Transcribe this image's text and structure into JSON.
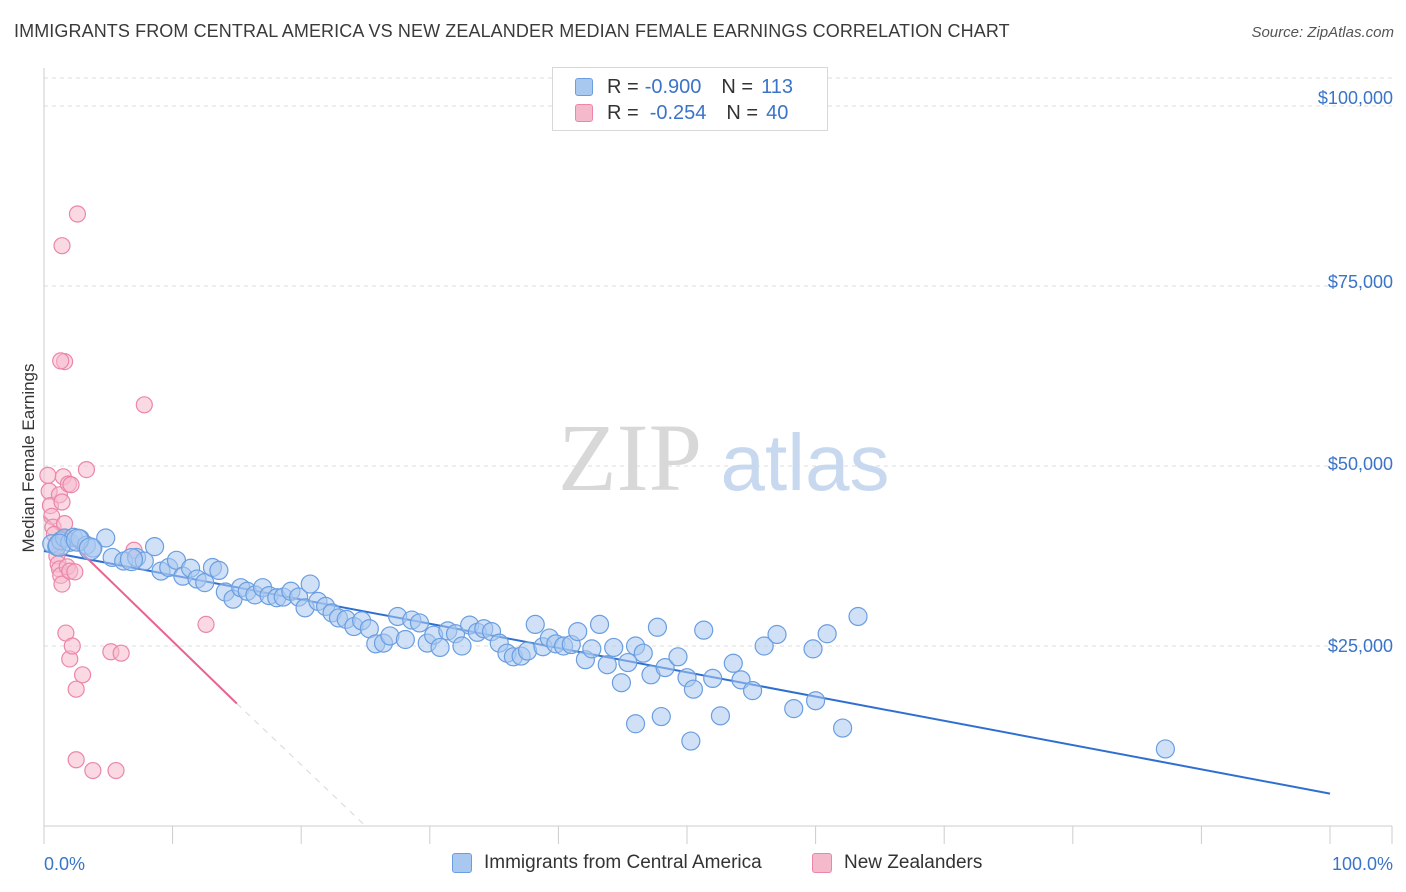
{
  "title": "IMMIGRANTS FROM CENTRAL AMERICA VS NEW ZEALANDER MEDIAN FEMALE EARNINGS CORRELATION CHART",
  "source": "Source: ZipAtlas.com",
  "watermark": {
    "zip": "ZIP",
    "atlas": "atlas"
  },
  "colors": {
    "blue_fill": "#a9c8f0",
    "blue_stroke": "#6a9ee0",
    "blue_line": "#2f6fd0",
    "pink_fill": "#f5b9cc",
    "pink_stroke": "#ec86a8",
    "pink_line": "#e8648f",
    "axis_text": "#3a74c8",
    "grid": "#dddddd"
  },
  "legend": {
    "rows": [
      {
        "r_label": "R =",
        "r_value": "-0.900",
        "n_label": "N =",
        "n_value": "113"
      },
      {
        "r_label": "R =",
        "r_value": "-0.254",
        "n_label": "N =",
        "n_value": "40"
      }
    ]
  },
  "chart_data": {
    "type": "scatter",
    "title": "IMMIGRANTS FROM CENTRAL AMERICA VS NEW ZEALANDER MEDIAN FEMALE EARNINGS CORRELATION CHART",
    "ylabel": "Median Female Earnings",
    "xlabel": "",
    "xlim": [
      0,
      100
    ],
    "ylim": [
      0,
      105000
    ],
    "x_tick_labels": [
      "0.0%",
      "100.0%"
    ],
    "y_ticks": [
      25000,
      50000,
      75000,
      100000
    ],
    "y_tick_labels": [
      "$25,000",
      "$50,000",
      "$75,000",
      "$100,000"
    ],
    "grid": true,
    "legend_position": "bottom",
    "series": [
      {
        "name": "Immigrants from Central America",
        "color": "#a9c8f0",
        "trend": {
          "x": [
            0,
            100
          ],
          "y": [
            38200,
            4500
          ]
        },
        "points": [
          [
            0.6,
            39200
          ],
          [
            1.0,
            38800
          ],
          [
            1.3,
            39600
          ],
          [
            1.6,
            40000
          ],
          [
            2.0,
            39400
          ],
          [
            2.3,
            40100
          ],
          [
            2.8,
            39900
          ],
          [
            3.3,
            39000
          ],
          [
            3.8,
            38600
          ],
          [
            4.8,
            40000
          ],
          [
            5.3,
            37300
          ],
          [
            6.2,
            36800
          ],
          [
            7.2,
            37300
          ],
          [
            7.8,
            36800
          ],
          [
            8.6,
            38800
          ],
          [
            9.1,
            35400
          ],
          [
            9.7,
            35900
          ],
          [
            10.3,
            36900
          ],
          [
            10.8,
            34700
          ],
          [
            11.4,
            35800
          ],
          [
            11.9,
            34300
          ],
          [
            12.5,
            33800
          ],
          [
            13.1,
            35900
          ],
          [
            13.6,
            35500
          ],
          [
            14.1,
            32500
          ],
          [
            14.7,
            31500
          ],
          [
            15.3,
            33100
          ],
          [
            15.8,
            32600
          ],
          [
            16.4,
            32100
          ],
          [
            17.0,
            33100
          ],
          [
            17.5,
            32000
          ],
          [
            18.1,
            31700
          ],
          [
            18.6,
            31800
          ],
          [
            19.2,
            32600
          ],
          [
            19.8,
            31800
          ],
          [
            20.3,
            30300
          ],
          [
            20.7,
            33600
          ],
          [
            21.3,
            31200
          ],
          [
            21.9,
            30500
          ],
          [
            22.4,
            29600
          ],
          [
            22.9,
            28900
          ],
          [
            23.5,
            28700
          ],
          [
            24.1,
            27700
          ],
          [
            24.7,
            28500
          ],
          [
            25.3,
            27400
          ],
          [
            25.8,
            25300
          ],
          [
            26.4,
            25400
          ],
          [
            26.9,
            26400
          ],
          [
            27.5,
            29100
          ],
          [
            28.1,
            25900
          ],
          [
            28.6,
            28600
          ],
          [
            29.2,
            28200
          ],
          [
            29.8,
            25400
          ],
          [
            30.3,
            26500
          ],
          [
            30.8,
            24800
          ],
          [
            31.4,
            27100
          ],
          [
            32.0,
            26700
          ],
          [
            32.5,
            25000
          ],
          [
            33.1,
            27900
          ],
          [
            33.7,
            26900
          ],
          [
            34.2,
            27400
          ],
          [
            34.8,
            27000
          ],
          [
            35.4,
            25400
          ],
          [
            36.0,
            24000
          ],
          [
            36.5,
            23500
          ],
          [
            37.1,
            23600
          ],
          [
            37.6,
            24300
          ],
          [
            38.2,
            28000
          ],
          [
            38.8,
            24900
          ],
          [
            39.3,
            26100
          ],
          [
            39.8,
            25300
          ],
          [
            40.4,
            25000
          ],
          [
            41.0,
            25200
          ],
          [
            41.5,
            27000
          ],
          [
            42.1,
            23100
          ],
          [
            42.6,
            24600
          ],
          [
            43.2,
            28000
          ],
          [
            43.8,
            22400
          ],
          [
            44.3,
            24800
          ],
          [
            44.9,
            19900
          ],
          [
            45.4,
            22700
          ],
          [
            46.0,
            25000
          ],
          [
            46.6,
            24000
          ],
          [
            47.2,
            21000
          ],
          [
            47.7,
            27600
          ],
          [
            48.3,
            22000
          ],
          [
            49.3,
            23500
          ],
          [
            50.0,
            20600
          ],
          [
            50.5,
            19000
          ],
          [
            51.3,
            27200
          ],
          [
            52.0,
            20500
          ],
          [
            53.6,
            22600
          ],
          [
            54.2,
            20300
          ],
          [
            55.1,
            18800
          ],
          [
            56.0,
            25000
          ],
          [
            57.0,
            26600
          ],
          [
            58.3,
            16300
          ],
          [
            59.8,
            24600
          ],
          [
            60.0,
            17400
          ],
          [
            60.9,
            26700
          ],
          [
            62.1,
            13600
          ],
          [
            63.3,
            29100
          ],
          [
            46.0,
            14200
          ],
          [
            50.3,
            11800
          ],
          [
            52.6,
            15300
          ],
          [
            48.0,
            15200
          ],
          [
            87.2,
            10700
          ]
        ],
        "large_points": [
          [
            1.2,
            39000
          ],
          [
            2.6,
            39700
          ],
          [
            3.6,
            38500
          ],
          [
            6.8,
            37000
          ]
        ]
      },
      {
        "name": "New Zealanders",
        "color": "#f5b9cc",
        "trend_solid": {
          "x": [
            0,
            15
          ],
          "y": [
            43000,
            17000
          ]
        },
        "trend_dashed": {
          "x": [
            15,
            25
          ],
          "y": [
            17000,
            0
          ]
        },
        "points": [
          [
            0.3,
            48700
          ],
          [
            0.4,
            46500
          ],
          [
            0.5,
            44500
          ],
          [
            0.6,
            43000
          ],
          [
            0.7,
            41500
          ],
          [
            0.8,
            40500
          ],
          [
            0.9,
            38900
          ],
          [
            1.0,
            37500
          ],
          [
            1.1,
            36400
          ],
          [
            1.2,
            35700
          ],
          [
            1.3,
            34800
          ],
          [
            1.4,
            33600
          ],
          [
            1.2,
            46000
          ],
          [
            1.4,
            45000
          ],
          [
            1.5,
            48500
          ],
          [
            1.6,
            42000
          ],
          [
            1.7,
            40000
          ],
          [
            1.8,
            36000
          ],
          [
            1.6,
            64500
          ],
          [
            1.3,
            64600
          ],
          [
            1.4,
            80600
          ],
          [
            2.6,
            85000
          ],
          [
            1.9,
            47500
          ],
          [
            2.1,
            47400
          ],
          [
            3.3,
            49500
          ],
          [
            7.8,
            58500
          ],
          [
            1.7,
            26800
          ],
          [
            2.0,
            23200
          ],
          [
            2.2,
            25000
          ],
          [
            2.5,
            19000
          ],
          [
            3.0,
            21000
          ],
          [
            5.2,
            24200
          ],
          [
            6.0,
            24000
          ],
          [
            7.0,
            38300
          ],
          [
            12.6,
            28000
          ],
          [
            2.5,
            9200
          ],
          [
            3.8,
            7700
          ],
          [
            5.6,
            7700
          ],
          [
            2.0,
            35400
          ],
          [
            2.4,
            35300
          ]
        ]
      }
    ]
  },
  "bottom_legend": {
    "items": [
      {
        "label": "Immigrants from Central America"
      },
      {
        "label": "New Zealanders"
      }
    ]
  }
}
